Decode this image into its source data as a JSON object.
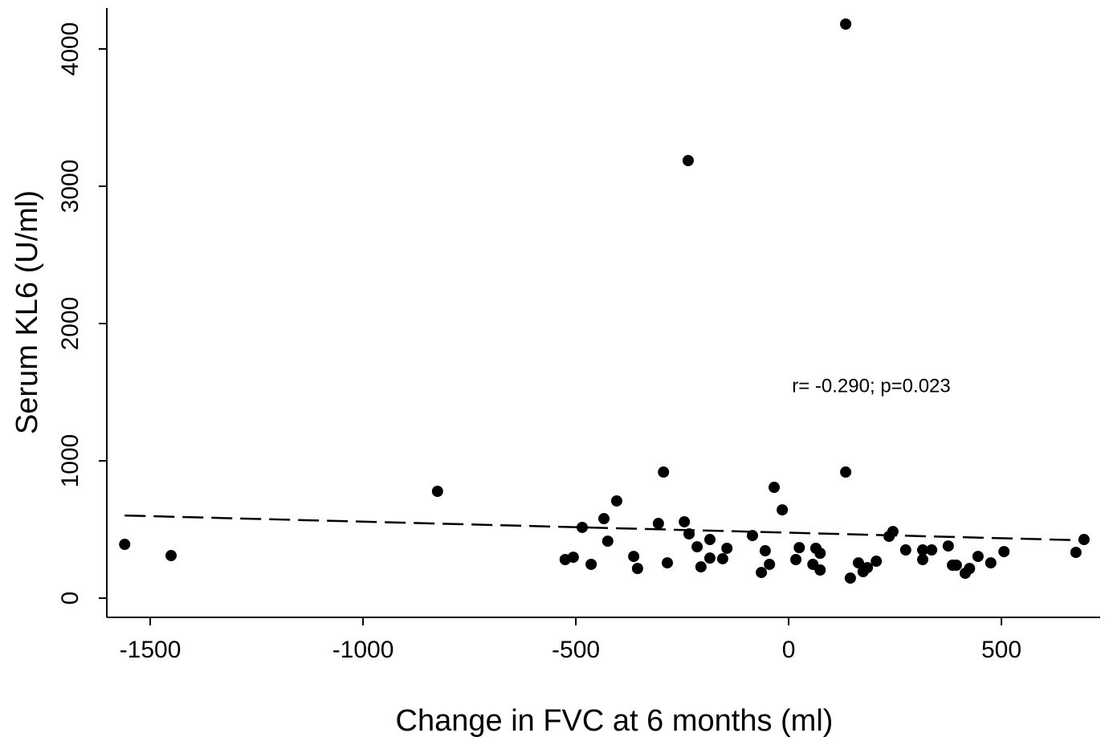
{
  "chart_data": {
    "type": "scatter",
    "x_label": "Change in FVC at 6 months (ml)",
    "y_label": "Serum KL6 (U/ml)",
    "annotation": "r= -0.290; p=0.023",
    "xlim": [
      -1602,
      732
    ],
    "ylim": [
      -140,
      4298
    ],
    "xticks": [
      -1500,
      -1000,
      -500,
      0,
      500
    ],
    "yticks": [
      0,
      1000,
      2000,
      3000,
      4000
    ],
    "color": "#000000",
    "x": [
      -1560,
      -1451,
      -825,
      -525,
      -506,
      -485,
      -464,
      -434,
      -425,
      -404,
      -364,
      -355,
      -306,
      -294,
      -285,
      -245,
      -236,
      -234,
      -215,
      -206,
      -185,
      -185,
      -155,
      -145,
      -85,
      -64,
      -55,
      -45,
      -34,
      -15,
      17,
      25,
      57,
      64,
      74,
      74,
      134,
      134,
      145,
      164,
      175,
      185,
      206,
      236,
      245,
      275,
      315,
      315,
      336,
      375,
      385,
      394,
      415,
      425,
      445,
      475,
      506,
      675,
      694
    ],
    "values": [
      392,
      310,
      778,
      281,
      298,
      515,
      246,
      579,
      415,
      708,
      304,
      216,
      544,
      918,
      257,
      556,
      3187,
      468,
      374,
      228,
      427,
      292,
      287,
      363,
      456,
      187,
      345,
      246,
      807,
      643,
      281,
      368,
      246,
      363,
      327,
      205,
      4181,
      918,
      146,
      257,
      193,
      222,
      269,
      450,
      485,
      351,
      281,
      351,
      351,
      380,
      240,
      240,
      181,
      216,
      304,
      257,
      339,
      333,
      427
    ],
    "trendline": {
      "x": [
        -1560,
        694
      ],
      "values": [
        602,
        421
      ]
    }
  }
}
